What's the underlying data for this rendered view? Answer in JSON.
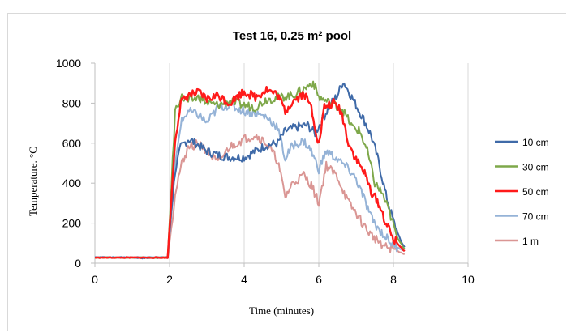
{
  "chart_data": {
    "type": "line",
    "title": "Test 16, 0.25 m² pool",
    "xlabel": "Time (minutes)",
    "ylabel": "Temperature. °C",
    "xlim": [
      0,
      10
    ],
    "ylim": [
      0,
      1000
    ],
    "x_ticks": [
      0,
      2,
      4,
      6,
      8,
      10
    ],
    "y_ticks": [
      0,
      200,
      400,
      600,
      800,
      1000
    ],
    "x_tick_labels": [
      "0",
      "2",
      "4",
      "6",
      "8",
      "10"
    ],
    "y_tick_labels": [
      "0",
      "200",
      "400",
      "600",
      "800",
      "1000"
    ],
    "grid": "vertical",
    "legend_position": "right",
    "series": [
      {
        "name": "10 cm",
        "color": "#3f6aa8",
        "points": [
          [
            0,
            30
          ],
          [
            1,
            28
          ],
          [
            1.3,
            25
          ],
          [
            1.95,
            30
          ],
          [
            2.05,
            260
          ],
          [
            2.15,
            460
          ],
          [
            2.3,
            580
          ],
          [
            2.5,
            620
          ],
          [
            2.7,
            600
          ],
          [
            3,
            560
          ],
          [
            3.3,
            540
          ],
          [
            3.6,
            530
          ],
          [
            4,
            530
          ],
          [
            4.3,
            560
          ],
          [
            4.6,
            590
          ],
          [
            4.9,
            600
          ],
          [
            5.1,
            660
          ],
          [
            5.4,
            680
          ],
          [
            5.7,
            690
          ],
          [
            5.9,
            650
          ],
          [
            6.1,
            720
          ],
          [
            6.3,
            790
          ],
          [
            6.5,
            840
          ],
          [
            6.65,
            910
          ],
          [
            6.8,
            860
          ],
          [
            7,
            790
          ],
          [
            7.2,
            720
          ],
          [
            7.4,
            640
          ],
          [
            7.6,
            510
          ],
          [
            7.8,
            340
          ],
          [
            8,
            210
          ],
          [
            8.2,
            110
          ],
          [
            8.3,
            80
          ]
        ]
      },
      {
        "name": "30 cm",
        "color": "#7ea84a",
        "points": [
          [
            0,
            28
          ],
          [
            1.95,
            28
          ],
          [
            2.05,
            380
          ],
          [
            2.15,
            760
          ],
          [
            2.3,
            830
          ],
          [
            2.5,
            810
          ],
          [
            2.8,
            830
          ],
          [
            3,
            800
          ],
          [
            3.3,
            790
          ],
          [
            3.6,
            810
          ],
          [
            4,
            790
          ],
          [
            4.3,
            780
          ],
          [
            4.6,
            820
          ],
          [
            5,
            830
          ],
          [
            5.3,
            840
          ],
          [
            5.6,
            870
          ],
          [
            5.85,
            905
          ],
          [
            6,
            830
          ],
          [
            6.3,
            800
          ],
          [
            6.6,
            780
          ],
          [
            6.9,
            680
          ],
          [
            7.1,
            660
          ],
          [
            7.3,
            560
          ],
          [
            7.5,
            400
          ],
          [
            7.7,
            350
          ],
          [
            7.9,
            250
          ],
          [
            8.1,
            130
          ],
          [
            8.3,
            70
          ]
        ]
      },
      {
        "name": "50 cm",
        "color": "#ff1a1a",
        "points": [
          [
            0,
            28
          ],
          [
            1.95,
            28
          ],
          [
            2.05,
            320
          ],
          [
            2.15,
            620
          ],
          [
            2.3,
            800
          ],
          [
            2.5,
            840
          ],
          [
            2.8,
            850
          ],
          [
            3,
            820
          ],
          [
            3.3,
            840
          ],
          [
            3.6,
            800
          ],
          [
            4,
            860
          ],
          [
            4.3,
            830
          ],
          [
            4.6,
            870
          ],
          [
            4.9,
            840
          ],
          [
            5.1,
            760
          ],
          [
            5.3,
            810
          ],
          [
            5.6,
            850
          ],
          [
            5.8,
            780
          ],
          [
            6,
            590
          ],
          [
            6.15,
            780
          ],
          [
            6.4,
            800
          ],
          [
            6.6,
            760
          ],
          [
            6.8,
            600
          ],
          [
            7,
            520
          ],
          [
            7.2,
            460
          ],
          [
            7.4,
            360
          ],
          [
            7.6,
            300
          ],
          [
            7.8,
            200
          ],
          [
            8,
            120
          ],
          [
            8.3,
            60
          ]
        ]
      },
      {
        "name": "70 cm",
        "color": "#95b3d7",
        "points": [
          [
            0,
            30
          ],
          [
            1.95,
            30
          ],
          [
            2.05,
            250
          ],
          [
            2.15,
            480
          ],
          [
            2.3,
            700
          ],
          [
            2.5,
            760
          ],
          [
            2.8,
            740
          ],
          [
            3,
            700
          ],
          [
            3.3,
            780
          ],
          [
            3.6,
            790
          ],
          [
            4,
            760
          ],
          [
            4.3,
            750
          ],
          [
            4.6,
            730
          ],
          [
            4.9,
            680
          ],
          [
            5.1,
            520
          ],
          [
            5.3,
            590
          ],
          [
            5.6,
            610
          ],
          [
            5.8,
            560
          ],
          [
            6,
            470
          ],
          [
            6.2,
            560
          ],
          [
            6.5,
            520
          ],
          [
            6.8,
            470
          ],
          [
            7,
            420
          ],
          [
            7.2,
            330
          ],
          [
            7.4,
            230
          ],
          [
            7.6,
            170
          ],
          [
            7.8,
            130
          ],
          [
            8,
            90
          ],
          [
            8.3,
            60
          ]
        ]
      },
      {
        "name": "1 m",
        "color": "#da9694",
        "points": [
          [
            0,
            28
          ],
          [
            1.95,
            26
          ],
          [
            2.05,
            180
          ],
          [
            2.15,
            350
          ],
          [
            2.3,
            480
          ],
          [
            2.5,
            580
          ],
          [
            2.8,
            600
          ],
          [
            3,
            560
          ],
          [
            3.3,
            500
          ],
          [
            3.6,
            580
          ],
          [
            4,
            620
          ],
          [
            4.3,
            640
          ],
          [
            4.6,
            600
          ],
          [
            4.9,
            510
          ],
          [
            5.1,
            330
          ],
          [
            5.3,
            400
          ],
          [
            5.6,
            440
          ],
          [
            5.8,
            390
          ],
          [
            6,
            300
          ],
          [
            6.2,
            490
          ],
          [
            6.5,
            430
          ],
          [
            6.8,
            300
          ],
          [
            7,
            250
          ],
          [
            7.2,
            190
          ],
          [
            7.4,
            140
          ],
          [
            7.6,
            110
          ],
          [
            7.8,
            80
          ],
          [
            8,
            70
          ],
          [
            8.3,
            45
          ]
        ]
      }
    ]
  }
}
